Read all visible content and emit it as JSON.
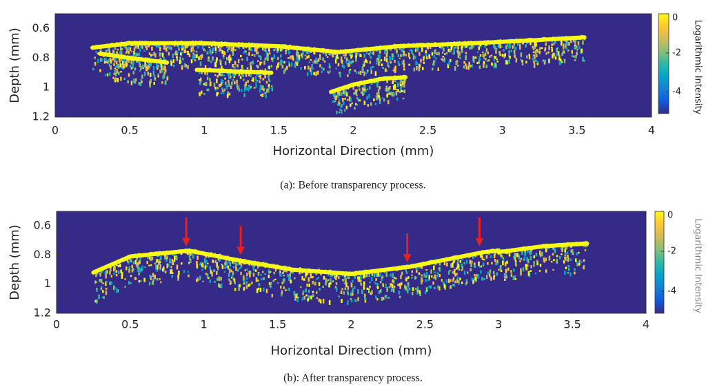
{
  "chart_data": [
    {
      "type": "image",
      "xlabel": "Horizontal Direction (mm)",
      "ylabel": "Depth (mm)",
      "xlim": [
        0,
        4
      ],
      "xticks": [
        0,
        0.5,
        1,
        1.5,
        2,
        2.5,
        3,
        3.5,
        4
      ],
      "ylim": [
        0.5,
        1.2
      ],
      "yticks": [
        0.6,
        0.8,
        1,
        1.2
      ],
      "y_reversed": true,
      "background": "#352a87",
      "colormap": [
        "#352a87",
        "#0f5cdd",
        "#1481d6",
        "#06a4ca",
        "#2eb7a4",
        "#87bf77",
        "#d1bb59",
        "#fec832",
        "#f9fb15"
      ],
      "colorbar": {
        "label": "Logarithmic Intensity",
        "clim": [
          -5.1,
          0
        ],
        "ticks": [
          0,
          -2,
          -4
        ]
      },
      "layers": [
        {
          "x": [
            0.25,
            0.5,
            1,
            1.5,
            1.9,
            2.3,
            2.8,
            3.2,
            3.55
          ],
          "depth": [
            0.73,
            0.7,
            0.7,
            0.72,
            0.76,
            0.72,
            0.7,
            0.68,
            0.66
          ]
        },
        {
          "x": [
            0.3,
            0.5,
            0.75
          ],
          "depth": [
            0.77,
            0.8,
            0.83
          ]
        },
        {
          "x": [
            0.95,
            1.2,
            1.45
          ],
          "depth": [
            0.88,
            0.89,
            0.9
          ]
        },
        {
          "x": [
            1.85,
            2.0,
            2.2,
            2.35
          ],
          "depth": [
            1.03,
            0.98,
            0.94,
            0.93
          ]
        }
      ],
      "caption": "(a): Before transparency process."
    },
    {
      "type": "image",
      "xlabel": "Horizontal Direction (mm)",
      "ylabel": "Depth (mm)",
      "xlim": [
        0,
        4
      ],
      "xticks": [
        0,
        0.5,
        1,
        1.5,
        2,
        2.5,
        3,
        3.5,
        4
      ],
      "ylim": [
        0.5,
        1.2
      ],
      "yticks": [
        0.6,
        0.8,
        1,
        1.2
      ],
      "y_reversed": true,
      "background": "#352a87",
      "colormap": [
        "#352a87",
        "#0f5cdd",
        "#1481d6",
        "#06a4ca",
        "#2eb7a4",
        "#87bf77",
        "#d1bb59",
        "#fec832",
        "#f9fb15"
      ],
      "colorbar": {
        "label": "Logarithmic Intensity",
        "clim": [
          -5.1,
          0
        ],
        "ticks": [
          0,
          -2,
          -4
        ]
      },
      "layers": [
        {
          "x": [
            0.25,
            0.5,
            0.9,
            1.25,
            1.6,
            2.0,
            2.4,
            2.9,
            3.0
          ],
          "depth": [
            0.92,
            0.81,
            0.77,
            0.84,
            0.9,
            0.93,
            0.88,
            0.78,
            0.77
          ]
        },
        {
          "x": [
            3.0,
            3.3,
            3.6
          ],
          "depth": [
            0.78,
            0.74,
            0.72
          ]
        }
      ],
      "arrows": {
        "color": "#e82020",
        "x": [
          0.88,
          1.25,
          2.38,
          2.87
        ],
        "depth": [
          0.74,
          0.8,
          0.85,
          0.74
        ]
      },
      "caption": "(b): After transparency process."
    }
  ]
}
